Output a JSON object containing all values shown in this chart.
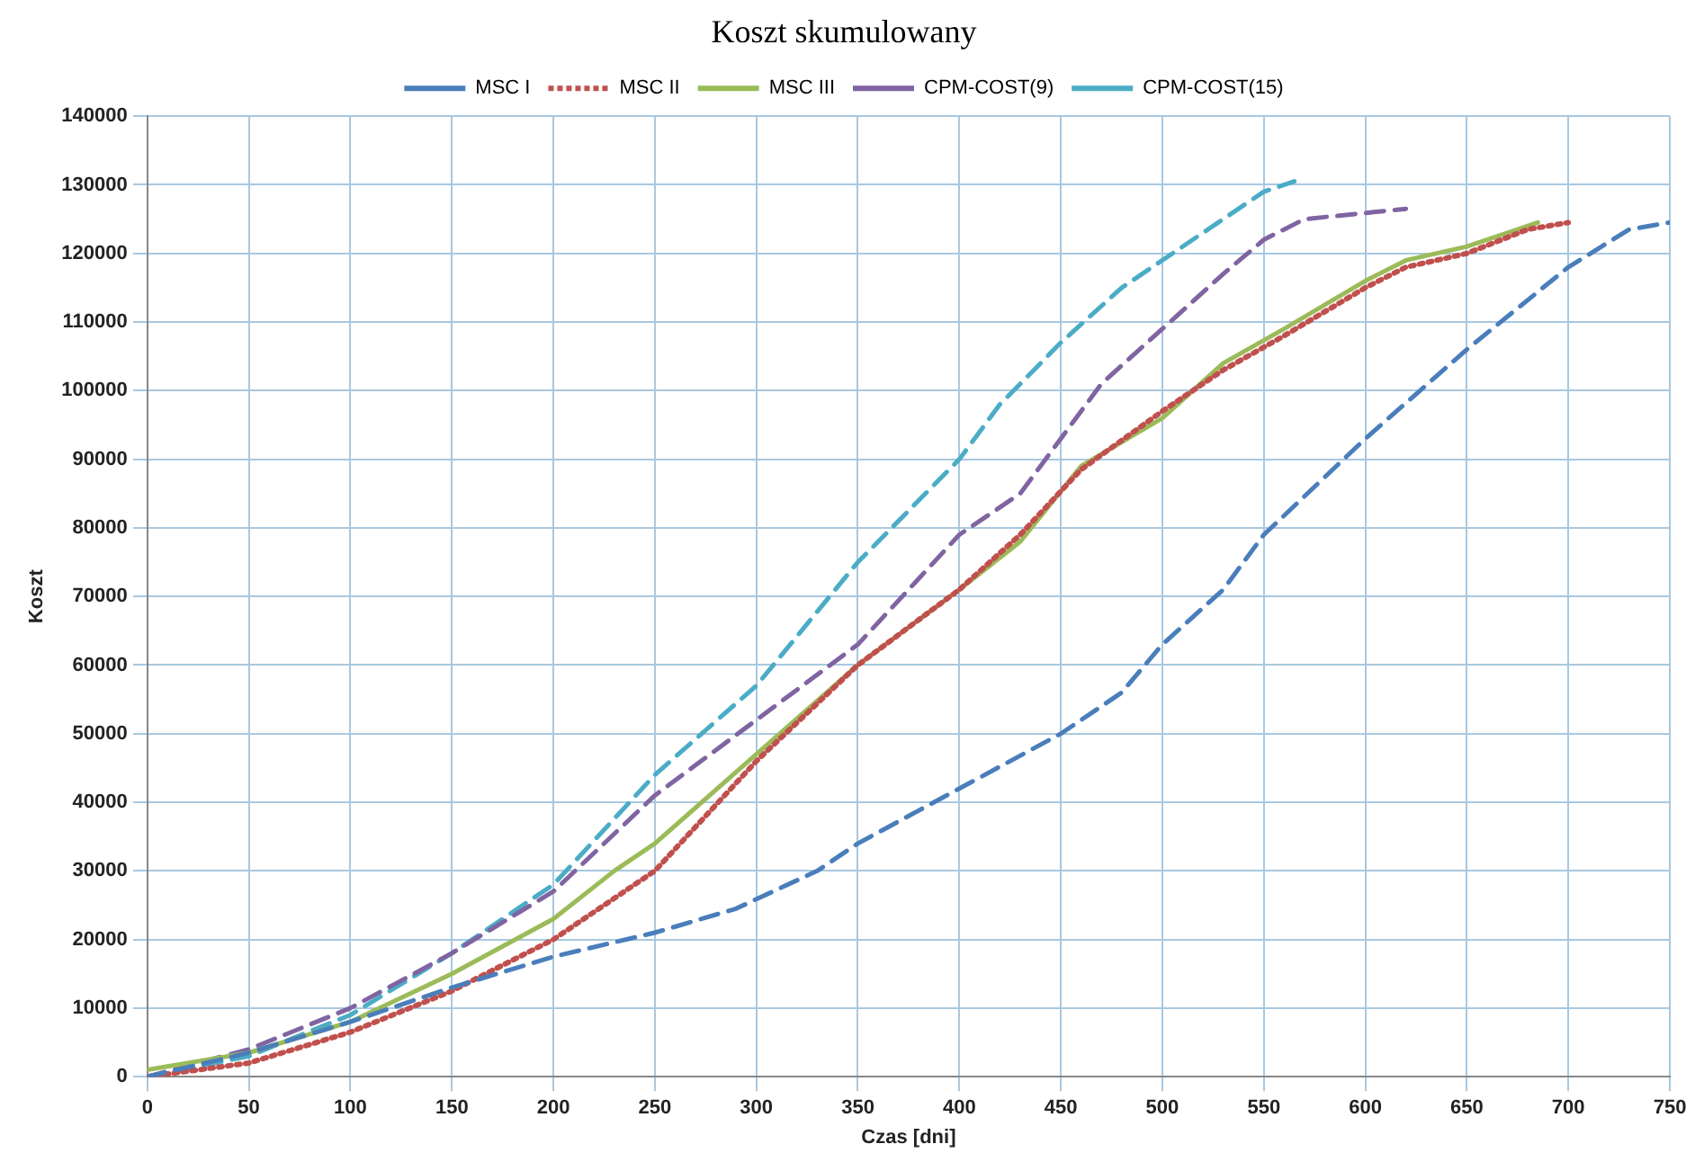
{
  "chart_data": {
    "type": "line",
    "title": "Koszt skumulowany",
    "xlabel": "Czas [dni]",
    "ylabel": "Koszt",
    "xlim": [
      0,
      750
    ],
    "xticks": [
      0,
      50,
      100,
      150,
      200,
      250,
      300,
      350,
      400,
      450,
      500,
      550,
      600,
      650,
      700,
      750
    ],
    "ylim": [
      0,
      140000
    ],
    "yticks": [
      0,
      10000,
      20000,
      30000,
      40000,
      50000,
      60000,
      70000,
      80000,
      90000,
      100000,
      110000,
      120000,
      130000,
      140000
    ],
    "grid": true,
    "legend": "top",
    "marker": "none",
    "series": [
      {
        "name": "MSC I",
        "color": "#4a7ebb",
        "line_style": "dashed",
        "x": [
          0,
          50,
          100,
          150,
          200,
          250,
          290,
          330,
          350,
          400,
          450,
          480,
          500,
          530,
          550,
          600,
          650,
          700,
          730,
          750
        ],
        "values": [
          0,
          3500,
          8000,
          13000,
          17500,
          21000,
          24500,
          30000,
          34000,
          42000,
          50000,
          56000,
          63000,
          71000,
          79000,
          93000,
          106000,
          118000,
          123500,
          124500
        ]
      },
      {
        "name": "MSC II",
        "color": "#c0504d",
        "line_style": "dotted",
        "x": [
          0,
          50,
          100,
          150,
          200,
          250,
          300,
          350,
          400,
          430,
          460,
          500,
          530,
          560,
          600,
          620,
          650,
          680,
          700
        ],
        "values": [
          0,
          2000,
          6500,
          12500,
          20000,
          30000,
          46000,
          60000,
          71000,
          79000,
          88500,
          97000,
          103000,
          108000,
          115000,
          118000,
          120000,
          123500,
          124500
        ]
      },
      {
        "name": "MSC III",
        "color": "#9bbb59",
        "line_style": "solid",
        "x": [
          0,
          50,
          100,
          150,
          200,
          230,
          250,
          300,
          350,
          400,
          430,
          460,
          500,
          530,
          560,
          600,
          620,
          650,
          685
        ],
        "values": [
          1000,
          3500,
          8000,
          15000,
          23000,
          30000,
          34000,
          47000,
          60000,
          71000,
          78000,
          89000,
          96000,
          104000,
          109000,
          116000,
          119000,
          121000,
          124500
        ]
      },
      {
        "name": "CPM-COST(9)",
        "color": "#8064a2",
        "line_style": "dashed",
        "x": [
          0,
          50,
          100,
          150,
          200,
          250,
          300,
          350,
          400,
          430,
          470,
          500,
          530,
          550,
          570,
          620
        ],
        "values": [
          0,
          4000,
          10000,
          18000,
          27000,
          41000,
          52000,
          63000,
          79000,
          85000,
          101000,
          109000,
          117000,
          122000,
          125000,
          126500
        ]
      },
      {
        "name": "CPM-COST(15)",
        "color": "#4bacc6",
        "line_style": "dashed",
        "x": [
          0,
          50,
          100,
          150,
          200,
          250,
          300,
          350,
          400,
          420,
          450,
          480,
          500,
          530,
          550,
          565
        ],
        "values": [
          0,
          3000,
          9000,
          18000,
          28000,
          44000,
          57000,
          75000,
          90000,
          98000,
          107000,
          115000,
          119000,
          125000,
          129000,
          130500
        ]
      }
    ]
  }
}
